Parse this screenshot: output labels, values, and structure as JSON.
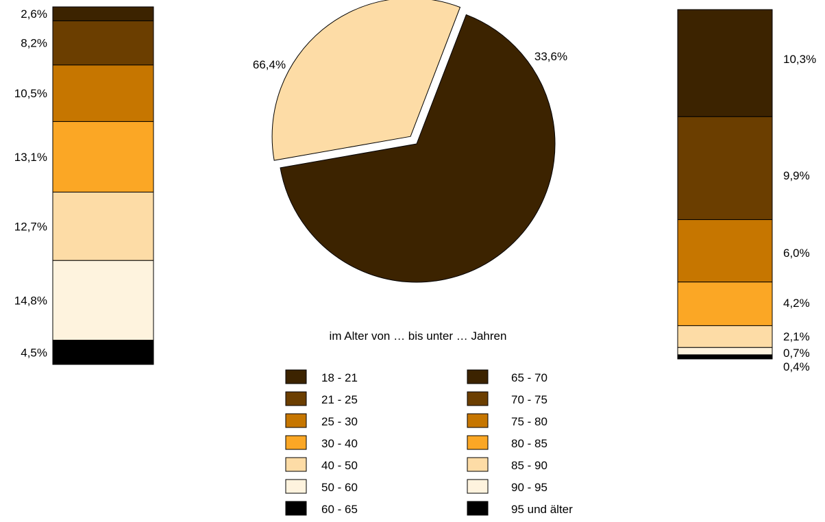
{
  "colors": {
    "age_palette": [
      "#3c2300",
      "#6b3e00",
      "#c67600",
      "#fba725",
      "#fddca6",
      "#fef3de",
      "#000000"
    ],
    "stroke": "#000000",
    "background": "#ffffff"
  },
  "chart_data": [
    {
      "type": "pie",
      "title": "",
      "slices": [
        {
          "label": "66,4%",
          "value": 66.4,
          "color": "#3c2300",
          "exploded": false
        },
        {
          "label": "33,6%",
          "value": 33.6,
          "color": "#fddca6",
          "exploded": true
        }
      ]
    },
    {
      "type": "bar",
      "stacked": true,
      "title": "",
      "series": [
        {
          "name": "18 - 21",
          "value": 2.6,
          "label": "2,6%",
          "color": "#3c2300"
        },
        {
          "name": "21 - 25",
          "value": 8.2,
          "label": "8,2%",
          "color": "#6b3e00"
        },
        {
          "name": "25 - 30",
          "value": 10.5,
          "label": "10,5%",
          "color": "#c67600"
        },
        {
          "name": "30 - 40",
          "value": 13.1,
          "label": "13,1%",
          "color": "#fba725"
        },
        {
          "name": "40 - 50",
          "value": 12.7,
          "label": "12,7%",
          "color": "#fddca6"
        },
        {
          "name": "50 - 60",
          "value": 14.8,
          "label": "14,8%",
          "color": "#fef3de"
        },
        {
          "name": "60 - 65",
          "value": 4.5,
          "label": "4,5%",
          "color": "#000000"
        }
      ]
    },
    {
      "type": "bar",
      "stacked": true,
      "title": "",
      "series": [
        {
          "name": "65 - 70",
          "value": 10.3,
          "label": "10,3%",
          "color": "#3c2300"
        },
        {
          "name": "70 - 75",
          "value": 9.9,
          "label": "9,9%",
          "color": "#6b3e00"
        },
        {
          "name": "75 - 80",
          "value": 6.0,
          "label": "6,0%",
          "color": "#c67600"
        },
        {
          "name": "80 - 85",
          "value": 4.2,
          "label": "4,2%",
          "color": "#fba725"
        },
        {
          "name": "85 - 90",
          "value": 2.1,
          "label": "2,1%",
          "color": "#fddca6"
        },
        {
          "name": "90 - 95",
          "value": 0.7,
          "label": "0,7%",
          "color": "#fef3de"
        },
        {
          "name": "95 und älter",
          "value": 0.4,
          "label": "0,4%",
          "color": "#000000"
        }
      ]
    }
  ],
  "legend": {
    "title": "im Alter von … bis unter … Jahren",
    "left_column": [
      {
        "label": "18 - 21",
        "color": "#3c2300"
      },
      {
        "label": "21 - 25",
        "color": "#6b3e00"
      },
      {
        "label": "25 - 30",
        "color": "#c67600"
      },
      {
        "label": "30 - 40",
        "color": "#fba725"
      },
      {
        "label": "40 - 50",
        "color": "#fddca6"
      },
      {
        "label": "50 - 60",
        "color": "#fef3de"
      },
      {
        "label": "60 - 65",
        "color": "#000000"
      }
    ],
    "right_column": [
      {
        "label": "65 - 70",
        "color": "#3c2300"
      },
      {
        "label": "70 - 75",
        "color": "#6b3e00"
      },
      {
        "label": "75 - 80",
        "color": "#c67600"
      },
      {
        "label": "80 - 85",
        "color": "#fba725"
      },
      {
        "label": "85 - 90",
        "color": "#fddca6"
      },
      {
        "label": "90 - 95",
        "color": "#fef3de"
      },
      {
        "label": "95 und älter",
        "color": "#000000"
      }
    ]
  }
}
